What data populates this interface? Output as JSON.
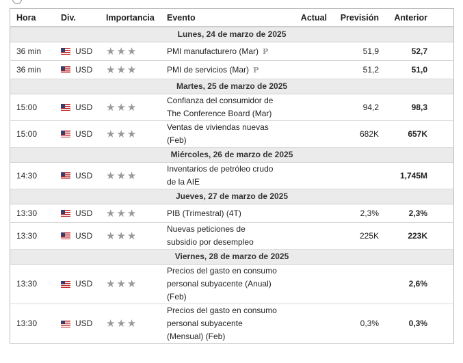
{
  "headers": {
    "hora": "Hora",
    "div": "Div.",
    "importancia": "Importancia",
    "evento": "Evento",
    "actual": "Actual",
    "prevision": "Previsión",
    "anterior": "Anterior"
  },
  "days": [
    {
      "date": "Lunes, 24 de marzo de 2025",
      "events": [
        {
          "time": "36 min",
          "currency": "USD",
          "event": "PMI manufacturero (Mar)",
          "prelim": "P",
          "actual": "",
          "forecast": "51,9",
          "previous": "52,7"
        },
        {
          "time": "36 min",
          "currency": "USD",
          "event": "PMI de servicios (Mar)",
          "prelim": "P",
          "actual": "",
          "forecast": "51,2",
          "previous": "51,0"
        }
      ]
    },
    {
      "date": "Martes, 25 de marzo de 2025",
      "events": [
        {
          "time": "15:00",
          "currency": "USD",
          "event": "Confianza del consumidor de The Conference Board (Mar)",
          "actual": "",
          "forecast": "94,2",
          "previous": "98,3"
        },
        {
          "time": "15:00",
          "currency": "USD",
          "event": "Ventas de viviendas nuevas (Feb)",
          "actual": "",
          "forecast": "682K",
          "previous": "657K"
        }
      ]
    },
    {
      "date": "Miércoles, 26 de marzo de 2025",
      "events": [
        {
          "time": "14:30",
          "currency": "USD",
          "event": "Inventarios de petróleo crudo de la AIE",
          "actual": "",
          "forecast": "",
          "previous": "1,745M"
        }
      ]
    },
    {
      "date": "Jueves, 27 de marzo de 2025",
      "events": [
        {
          "time": "13:30",
          "currency": "USD",
          "event": "PIB (Trimestral) (4T)",
          "actual": "",
          "forecast": "2,3%",
          "previous": "2,3%"
        },
        {
          "time": "13:30",
          "currency": "USD",
          "event": "Nuevas peticiones de subsidio por desempleo",
          "actual": "",
          "forecast": "225K",
          "previous": "223K"
        }
      ]
    },
    {
      "date": "Viernes, 28 de marzo de 2025",
      "events": [
        {
          "time": "13:30",
          "currency": "USD",
          "event": "Precios del gasto en consumo personal subyacente (Anual) (Feb)",
          "actual": "",
          "forecast": "",
          "previous": "2,6%"
        },
        {
          "time": "13:30",
          "currency": "USD",
          "event": "Precios del gasto en consumo personal subyacente (Mensual) (Feb)",
          "actual": "",
          "forecast": "0,3%",
          "previous": "0,3%"
        }
      ]
    }
  ],
  "importance_stars": 3,
  "colors": {
    "star": "#999999",
    "date_row": "#ebebeb"
  }
}
